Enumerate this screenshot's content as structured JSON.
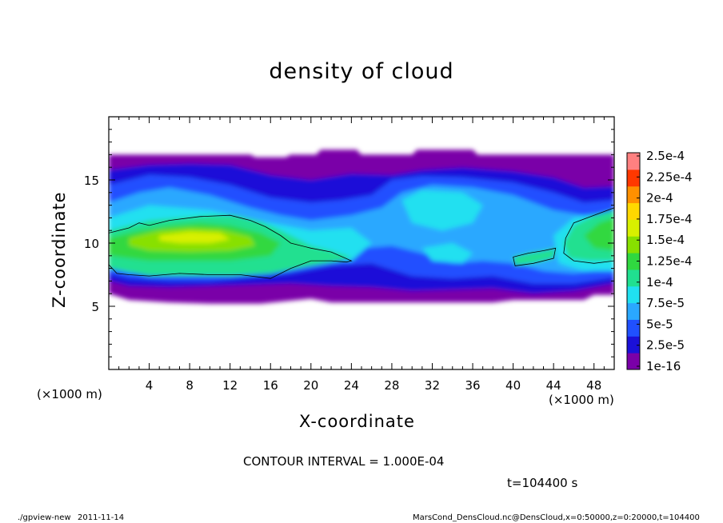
{
  "header": {
    "title": "density of cloud"
  },
  "footer": {
    "contour_interval": "CONTOUR INTERVAL = 1.000E-04",
    "time_label": "t=104400 s",
    "program": "./gpview-new",
    "date": "2011-11-14",
    "source": "MarsCond_DensCloud.nc@DensCloud,x=0:50000,z=0:20000,t=104400"
  },
  "chart_data": {
    "type": "heatmap",
    "title": "density of cloud",
    "xlabel": "X-coordinate",
    "ylabel": "Z-coordinate",
    "x_unit_label": "(×1000 m)",
    "y_unit_label": "(×1000 m)",
    "xlim": [
      0,
      50
    ],
    "ylim": [
      0,
      20
    ],
    "x_ticks": [
      4,
      8,
      12,
      16,
      20,
      24,
      28,
      32,
      36,
      40,
      44,
      48
    ],
    "y_ticks": [
      5,
      10,
      15
    ],
    "colorbar_labels": [
      "2.5e-4",
      "2.25e-4",
      "2e-4",
      "1.75e-4",
      "1.5e-4",
      "1.25e-4",
      "1e-4",
      "7.5e-5",
      "5e-5",
      "2.5e-5",
      "1e-16"
    ],
    "colors": {
      "lvl0": "#7a00a8",
      "lvl1": "#1a10d8",
      "lvl2": "#2050ff",
      "lvl3": "#2aa8ff",
      "lvl4": "#20e0f0",
      "lvl5": "#20e090",
      "lvl6": "#30d840",
      "lvl7": "#88e000",
      "lvl8": "#d8f000",
      "lvl9": "#ffd800",
      "lvl10": "#ff9000",
      "lvl11": "#ff3800",
      "lvl12": "#ff8080"
    },
    "contour_interval": 0.0001,
    "time_s": 104400
  }
}
